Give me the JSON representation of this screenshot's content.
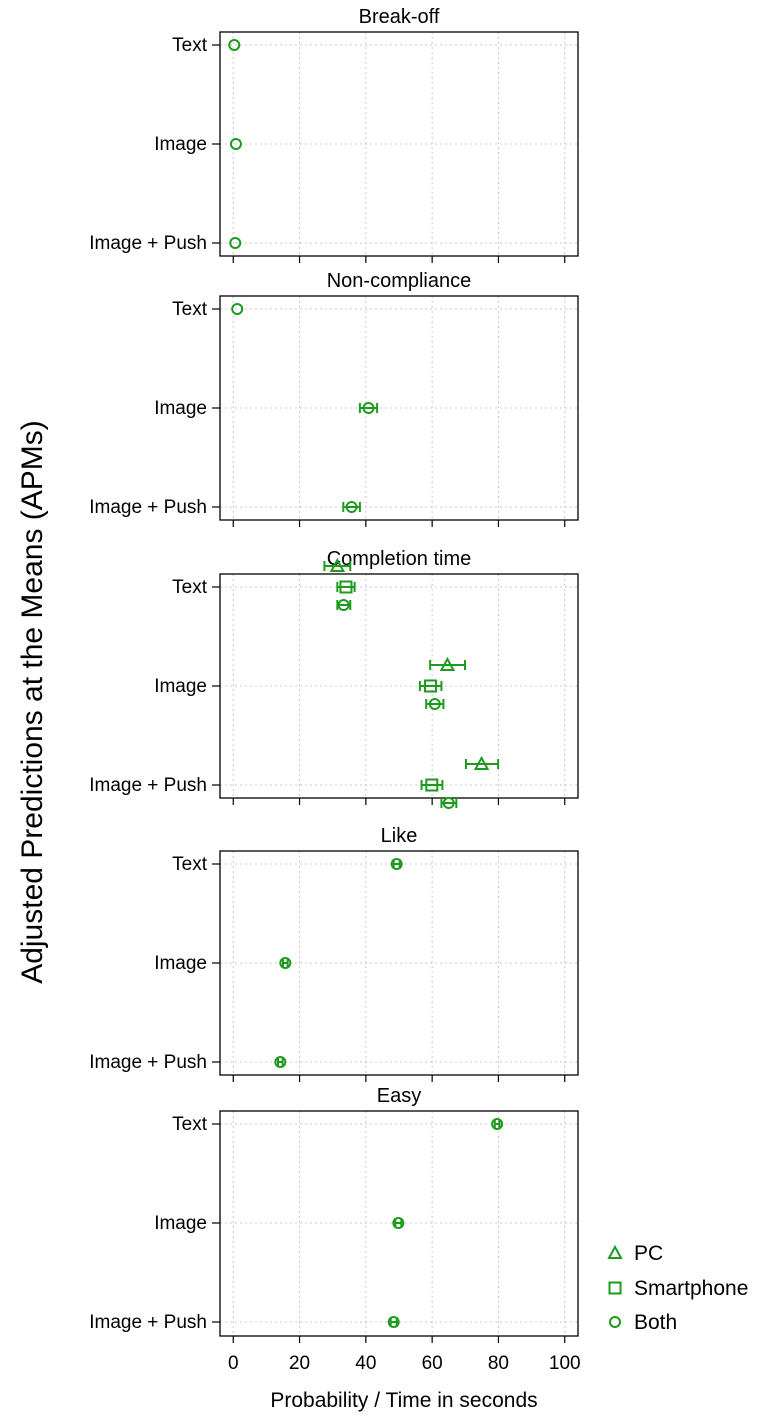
{
  "chart_data": {
    "type": "scatter",
    "ylabel": "Adjusted Predictions at the Means (APMs)",
    "xlabel": "Probability / Time in seconds",
    "xlim": [
      -4,
      104
    ],
    "xticks": [
      0,
      20,
      40,
      60,
      80,
      100
    ],
    "grid": true,
    "legend_position": "bottom-right",
    "colors": {
      "marker": "#1e9a1e",
      "grid": "#c8c8c8",
      "frame": "#000000"
    },
    "categories": [
      "Text",
      "Image",
      "Image + Push"
    ],
    "legend": [
      {
        "label": "PC",
        "marker": "triangle"
      },
      {
        "label": "Smartphone",
        "marker": "square"
      },
      {
        "label": "Both",
        "marker": "circle"
      }
    ],
    "panels": [
      {
        "title": "Break-off",
        "points": [
          {
            "category": "Text",
            "group": "Both",
            "value": 0.3,
            "ci": [
              0.3,
              0.3
            ]
          },
          {
            "category": "Image",
            "group": "Both",
            "value": 0.8,
            "ci": [
              0.8,
              0.8
            ]
          },
          {
            "category": "Image + Push",
            "group": "Both",
            "value": 0.6,
            "ci": [
              0.6,
              0.6
            ]
          }
        ]
      },
      {
        "title": "Non-compliance",
        "points": [
          {
            "category": "Text",
            "group": "Both",
            "value": 1.2,
            "ci": [
              1.2,
              1.2
            ]
          },
          {
            "category": "Image",
            "group": "Both",
            "value": 40.8,
            "ci": [
              38.2,
              43.4
            ]
          },
          {
            "category": "Image + Push",
            "group": "Both",
            "value": 35.7,
            "ci": [
              33.2,
              38.2
            ]
          }
        ]
      },
      {
        "title": "Completion time",
        "points": [
          {
            "category": "Text",
            "group": "PC",
            "value": 31.4,
            "ci": [
              27.5,
              35.3
            ]
          },
          {
            "category": "Text",
            "group": "Smartphone",
            "value": 34.0,
            "ci": [
              31.4,
              36.6
            ]
          },
          {
            "category": "Text",
            "group": "Both",
            "value": 33.3,
            "ci": [
              31.4,
              35.3
            ]
          },
          {
            "category": "Image",
            "group": "PC",
            "value": 64.6,
            "ci": [
              59.4,
              69.9
            ]
          },
          {
            "category": "Image",
            "group": "Smartphone",
            "value": 59.5,
            "ci": [
              56.3,
              62.8
            ]
          },
          {
            "category": "Image",
            "group": "Both",
            "value": 60.8,
            "ci": [
              58.2,
              63.4
            ]
          },
          {
            "category": "Image + Push",
            "group": "PC",
            "value": 74.9,
            "ci": [
              70.2,
              79.9
            ]
          },
          {
            "category": "Image + Push",
            "group": "Smartphone",
            "value": 59.9,
            "ci": [
              56.8,
              63.1
            ]
          },
          {
            "category": "Image + Push",
            "group": "Both",
            "value": 65.0,
            "ci": [
              62.8,
              67.3
            ]
          }
        ]
      },
      {
        "title": "Like",
        "points": [
          {
            "category": "Text",
            "group": "Both",
            "value": 49.3,
            "ci": [
              48.4,
              50.2
            ]
          },
          {
            "category": "Image",
            "group": "Both",
            "value": 15.7,
            "ci": [
              15.0,
              16.4
            ]
          },
          {
            "category": "Image + Push",
            "group": "Both",
            "value": 14.2,
            "ci": [
              13.5,
              14.9
            ]
          }
        ]
      },
      {
        "title": "Easy",
        "points": [
          {
            "category": "Text",
            "group": "Both",
            "value": 79.6,
            "ci": [
              78.9,
              80.3
            ]
          },
          {
            "category": "Image",
            "group": "Both",
            "value": 49.8,
            "ci": [
              48.9,
              50.7
            ]
          },
          {
            "category": "Image + Push",
            "group": "Both",
            "value": 48.4,
            "ci": [
              47.5,
              49.3
            ]
          }
        ]
      }
    ]
  }
}
